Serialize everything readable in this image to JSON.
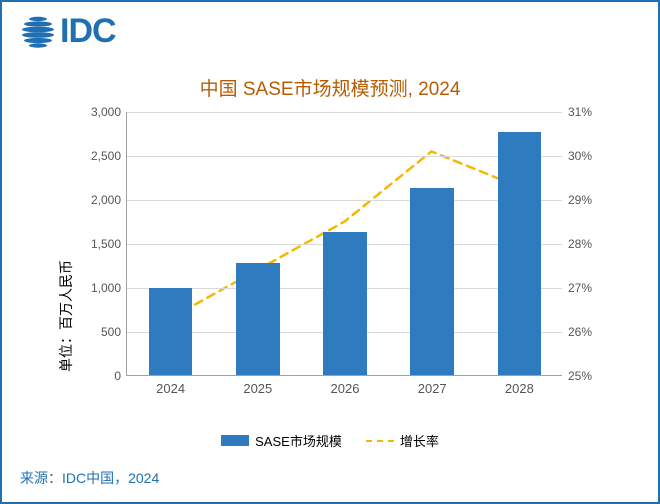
{
  "frame_border_color": "#1f6fb2",
  "logo": {
    "text": "IDC",
    "color": "#1f6fb2"
  },
  "chart": {
    "type": "bar+line",
    "title": "中国 SASE市场规模预测, 2024",
    "title_fontsize": 19,
    "title_color": "#b85c00",
    "categories": [
      "2024",
      "2025",
      "2026",
      "2027",
      "2028"
    ],
    "bars": {
      "label": "SASE市场规模",
      "values": [
        990,
        1270,
        1630,
        2120,
        2760
      ],
      "color": "#2f7bbf",
      "width_fraction": 0.5
    },
    "line": {
      "label": "增长率",
      "values": [
        26.3,
        27.4,
        28.5,
        30.1,
        29.3
      ],
      "color": "#f5b800",
      "dash": "8,6",
      "stroke_width": 2.5,
      "marker": "none"
    },
    "y_left": {
      "label": "单位：百万人民币",
      "min": 0,
      "max": 3000,
      "step": 500,
      "ticks": [
        "0",
        "500",
        "1,000",
        "1,500",
        "2,000",
        "2,500",
        "3,000"
      ],
      "label_fontsize": 14
    },
    "y_right": {
      "min": 25,
      "max": 31,
      "step": 1,
      "ticks": [
        "25%",
        "26%",
        "27%",
        "28%",
        "29%",
        "30%",
        "31%"
      ]
    },
    "tick_color": "#555555",
    "grid_color": "#d9d9d9",
    "axis_color": "#a0a0a0",
    "background_color": "#ffffff"
  },
  "source": {
    "text": "来源：IDC中国，2024",
    "color": "#1f6fb2",
    "fontsize": 14
  }
}
